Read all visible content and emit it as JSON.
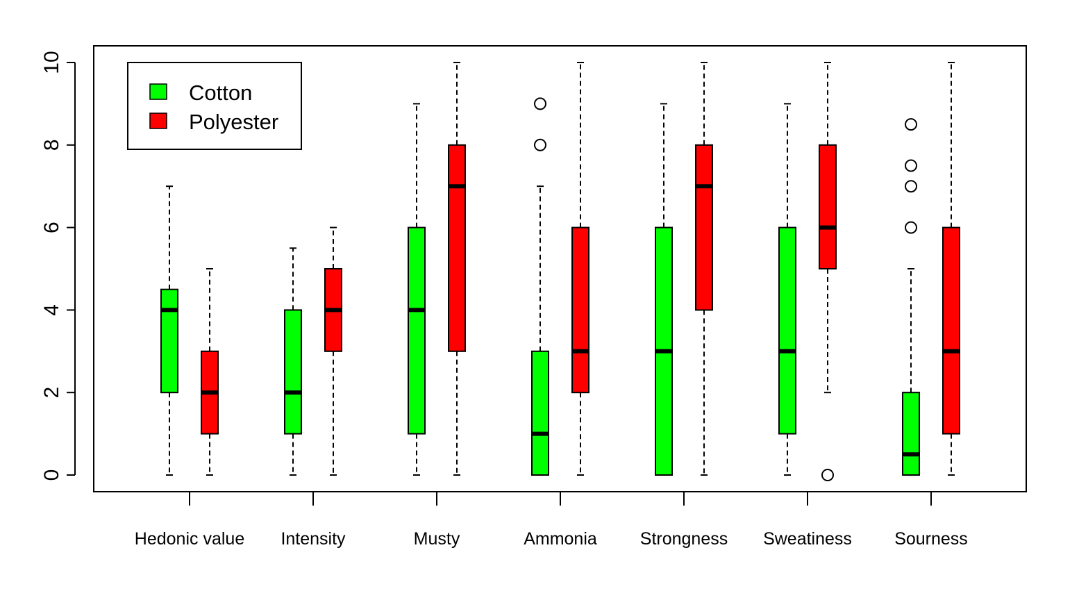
{
  "chart_data": {
    "type": "boxplot",
    "title": "",
    "xlabel": "",
    "ylabel": "",
    "ylim": [
      0,
      10
    ],
    "y_ticks": [
      "0",
      "2",
      "4",
      "6",
      "8",
      "10"
    ],
    "categories": [
      "Hedonic value",
      "Intensity",
      "Musty",
      "Ammonia",
      "Strongness",
      "Sweatiness",
      "Sourness"
    ],
    "legend": {
      "position": "top-left",
      "items": [
        "Cotton",
        "Polyester"
      ]
    },
    "series": [
      {
        "name": "Cotton",
        "color": "#00ff00",
        "boxes": [
          {
            "min": 0,
            "q1": 2,
            "median": 4,
            "q3": 4.5,
            "max": 7,
            "outliers": []
          },
          {
            "min": 0,
            "q1": 1,
            "median": 2,
            "q3": 4,
            "max": 5.5,
            "outliers": []
          },
          {
            "min": 0,
            "q1": 1,
            "median": 4,
            "q3": 6,
            "max": 9,
            "outliers": []
          },
          {
            "min": 0,
            "q1": 0,
            "median": 1,
            "q3": 3,
            "max": 7,
            "outliers": [
              8,
              9
            ]
          },
          {
            "min": 0,
            "q1": 0,
            "median": 3,
            "q3": 6,
            "max": 9,
            "outliers": []
          },
          {
            "min": 0,
            "q1": 1,
            "median": 3,
            "q3": 6,
            "max": 9,
            "outliers": []
          },
          {
            "min": 0,
            "q1": 0,
            "median": 0.5,
            "q3": 2,
            "max": 5,
            "outliers": [
              6,
              7,
              7.5,
              8.5
            ]
          }
        ]
      },
      {
        "name": "Polyester",
        "color": "#ff0000",
        "boxes": [
          {
            "min": 0,
            "q1": 1,
            "median": 2,
            "q3": 3,
            "max": 5,
            "outliers": []
          },
          {
            "min": 0,
            "q1": 3,
            "median": 4,
            "q3": 5,
            "max": 6,
            "outliers": []
          },
          {
            "min": 0,
            "q1": 3,
            "median": 7,
            "q3": 8,
            "max": 10,
            "outliers": []
          },
          {
            "min": 0,
            "q1": 2,
            "median": 3,
            "q3": 6,
            "max": 10,
            "outliers": []
          },
          {
            "min": 0,
            "q1": 4,
            "median": 7,
            "q3": 8,
            "max": 10,
            "outliers": []
          },
          {
            "min": 2,
            "q1": 5,
            "median": 6,
            "q3": 8,
            "max": 10,
            "outliers": [
              0
            ]
          },
          {
            "min": 0,
            "q1": 1,
            "median": 3,
            "q3": 6,
            "max": 10,
            "outliers": []
          }
        ]
      }
    ]
  }
}
